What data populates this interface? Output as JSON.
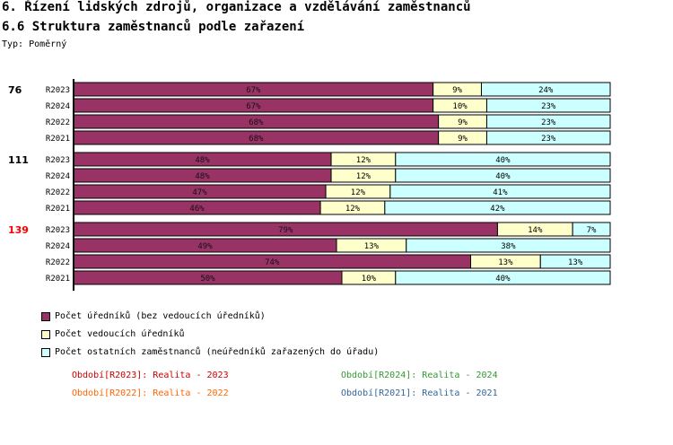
{
  "header": {
    "title": "6. Řízení lidských zdrojů, organizace a vzdělávání zaměstnanců",
    "subtitle": "6.6 Struktura zaměstnanců podle zařazení",
    "type_label": "Typ: Poměrný"
  },
  "colors": {
    "officials": "#993366",
    "managers": "#ffffcc",
    "others": "#ccffff",
    "group_label_red": "#ff0000",
    "group_label_black": "#000000",
    "period_2023": "#cc0000",
    "period_2024": "#339933",
    "period_2022": "#ff6600",
    "period_2021": "#336699"
  },
  "chart_data": {
    "type": "bar",
    "orientation": "horizontal",
    "stacked": "percent",
    "series": [
      {
        "name": "Počet úředníků (bez vedoucích úředníků)",
        "color": "#993366"
      },
      {
        "name": "Počet vedoucích úředníků",
        "color": "#ffffcc"
      },
      {
        "name": "Počet ostatních zaměstnanců (neúředníků zařazených do úřadu)",
        "color": "#ccffff"
      }
    ],
    "groups": [
      {
        "label": "76",
        "highlight": false,
        "rows": [
          {
            "period": "R2023",
            "values": [
              67,
              9,
              24
            ],
            "labels": [
              "67%",
              "9%",
              "24%"
            ]
          },
          {
            "period": "R2024",
            "values": [
              67,
              10,
              23
            ],
            "labels": [
              "67%",
              "10%",
              "23%"
            ]
          },
          {
            "period": "R2022",
            "values": [
              68,
              9,
              23
            ],
            "labels": [
              "68%",
              "9%",
              "23%"
            ]
          },
          {
            "period": "R2021",
            "values": [
              68,
              9,
              23
            ],
            "labels": [
              "68%",
              "9%",
              "23%"
            ]
          }
        ]
      },
      {
        "label": "111",
        "highlight": false,
        "rows": [
          {
            "period": "R2023",
            "values": [
              48,
              12,
              40
            ],
            "labels": [
              "48%",
              "12%",
              "40%"
            ]
          },
          {
            "period": "R2024",
            "values": [
              48,
              12,
              40
            ],
            "labels": [
              "48%",
              "12%",
              "40%"
            ]
          },
          {
            "period": "R2022",
            "values": [
              47,
              12,
              41
            ],
            "labels": [
              "47%",
              "12%",
              "41%"
            ]
          },
          {
            "period": "R2021",
            "values": [
              46,
              12,
              42
            ],
            "labels": [
              "46%",
              "12%",
              "42%"
            ]
          }
        ]
      },
      {
        "label": "139",
        "highlight": true,
        "rows": [
          {
            "period": "R2023",
            "values": [
              79,
              14,
              7
            ],
            "labels": [
              "79%",
              "14%",
              "7%"
            ]
          },
          {
            "period": "R2024",
            "values": [
              49,
              13,
              38
            ],
            "labels": [
              "49%",
              "13%",
              "38%"
            ]
          },
          {
            "period": "R2022",
            "values": [
              74,
              13,
              13
            ],
            "labels": [
              "74%",
              "13%",
              "13%"
            ]
          },
          {
            "period": "R2021",
            "values": [
              50,
              10,
              40
            ],
            "labels": [
              "50%",
              "10%",
              "40%"
            ]
          }
        ]
      }
    ]
  },
  "legend": [
    {
      "label": "Počet úředníků (bez vedoucích úředníků)",
      "color": "#993366"
    },
    {
      "label": "Počet vedoucích úředníků",
      "color": "#ffffcc"
    },
    {
      "label": "Počet ostatních zaměstnanců (neúředníků zařazených do úřadu)",
      "color": "#ccffff"
    }
  ],
  "periods": [
    {
      "text": "Období[R2023]: Realita - 2023",
      "color": "#cc0000"
    },
    {
      "text": "Období[R2024]: Realita - 2024",
      "color": "#339933"
    },
    {
      "text": "Období[R2022]: Realita - 2022",
      "color": "#ff6600"
    },
    {
      "text": "Období[R2021]: Realita - 2021",
      "color": "#336699"
    }
  ]
}
